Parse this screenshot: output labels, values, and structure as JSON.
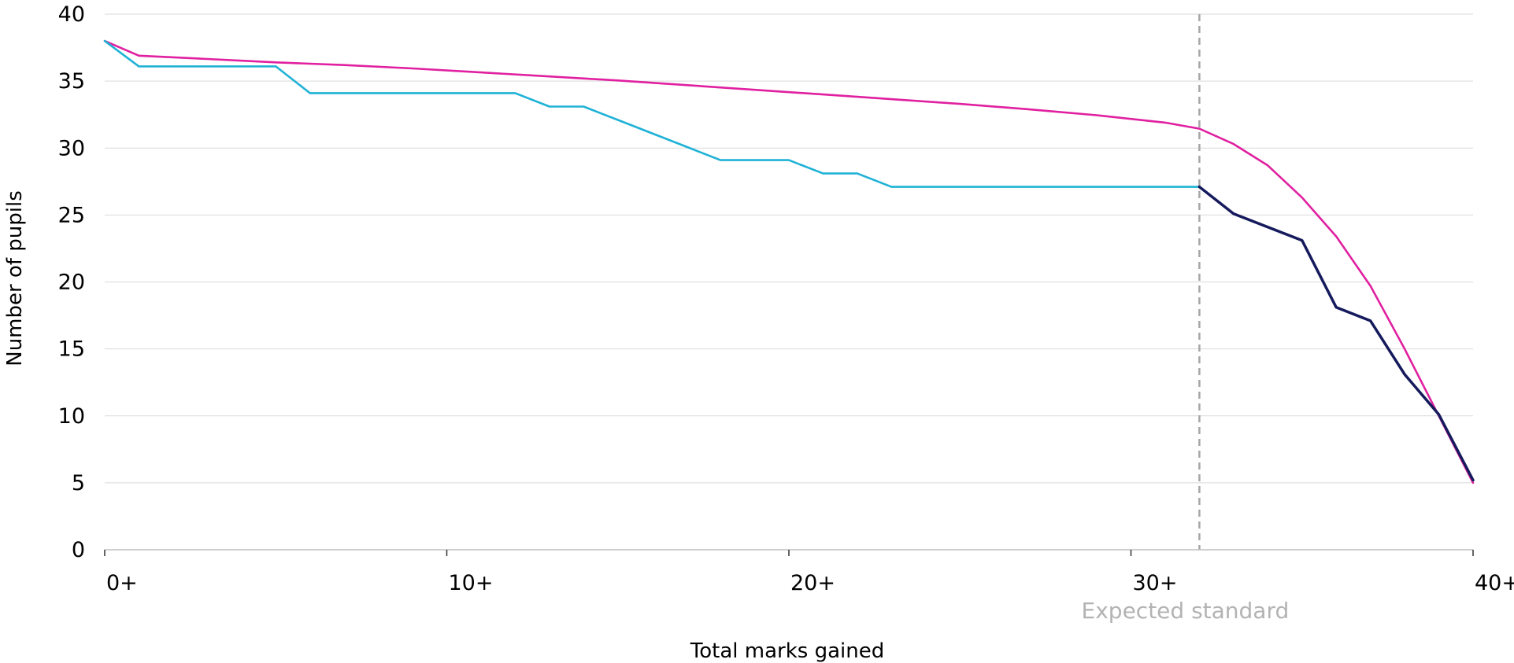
{
  "chart_data": {
    "type": "line",
    "title": "",
    "xlabel": "Total marks gained",
    "ylabel": "Number of pupils",
    "xlim": [
      0,
      40
    ],
    "ylim": [
      0,
      40
    ],
    "x_ticks": [
      {
        "value": 0,
        "label": "0+"
      },
      {
        "value": 10,
        "label": "10+"
      },
      {
        "value": 20,
        "label": "20+"
      },
      {
        "value": 30,
        "label": "30+"
      },
      {
        "value": 40,
        "label": "40+"
      }
    ],
    "y_ticks": [
      0,
      5,
      10,
      15,
      20,
      25,
      30,
      35,
      40
    ],
    "grid": "horizontal",
    "reference_line": {
      "x": 32,
      "label": "Expected standard",
      "color": "#a6a6a6",
      "style": "dashed"
    },
    "series": [
      {
        "color": "#e020a0",
        "points": [
          [
            0,
            38
          ],
          [
            1,
            36.9
          ],
          [
            3,
            36.65
          ],
          [
            5,
            36.4
          ],
          [
            7,
            36.2
          ],
          [
            9,
            35.95
          ],
          [
            11,
            35.65
          ],
          [
            13,
            35.35
          ],
          [
            15,
            35.05
          ],
          [
            17,
            34.7
          ],
          [
            19,
            34.35
          ],
          [
            21,
            34.0
          ],
          [
            23,
            33.65
          ],
          [
            25,
            33.3
          ],
          [
            27,
            32.9
          ],
          [
            29,
            32.45
          ],
          [
            31,
            31.9
          ],
          [
            32,
            31.45
          ],
          [
            33,
            30.3
          ],
          [
            34,
            28.7
          ],
          [
            35,
            26.3
          ],
          [
            36,
            23.4
          ],
          [
            37,
            19.7
          ],
          [
            38,
            15.0
          ],
          [
            39,
            10.0
          ],
          [
            40,
            5.0
          ]
        ]
      },
      {
        "color": "#1fb2d6",
        "points": [
          [
            0,
            38
          ],
          [
            1,
            36.1
          ],
          [
            2,
            36.1
          ],
          [
            3,
            36.1
          ],
          [
            4,
            36.1
          ],
          [
            5,
            36.1
          ],
          [
            6,
            34.1
          ],
          [
            7,
            34.1
          ],
          [
            8,
            34.1
          ],
          [
            9,
            34.1
          ],
          [
            10,
            34.1
          ],
          [
            11,
            34.1
          ],
          [
            12,
            34.1
          ],
          [
            13,
            33.1
          ],
          [
            14,
            33.1
          ],
          [
            15,
            32.1
          ],
          [
            16,
            31.1
          ],
          [
            17,
            30.1
          ],
          [
            18,
            29.1
          ],
          [
            19,
            29.1
          ],
          [
            20,
            29.1
          ],
          [
            21,
            28.1
          ],
          [
            22,
            28.1
          ],
          [
            23,
            27.1
          ],
          [
            24,
            27.1
          ],
          [
            25,
            27.1
          ],
          [
            26,
            27.1
          ],
          [
            27,
            27.1
          ],
          [
            28,
            27.1
          ],
          [
            29,
            27.1
          ],
          [
            30,
            27.1
          ],
          [
            31,
            27.1
          ],
          [
            32,
            27.1
          ]
        ]
      },
      {
        "color": "#141a5c",
        "points": [
          [
            32,
            27.1
          ],
          [
            33,
            25.1
          ],
          [
            34,
            24.1
          ],
          [
            35,
            23.1
          ],
          [
            36,
            18.1
          ],
          [
            37,
            17.1
          ],
          [
            38,
            13.1
          ],
          [
            39,
            10.1
          ],
          [
            40,
            5.2
          ]
        ]
      }
    ]
  }
}
